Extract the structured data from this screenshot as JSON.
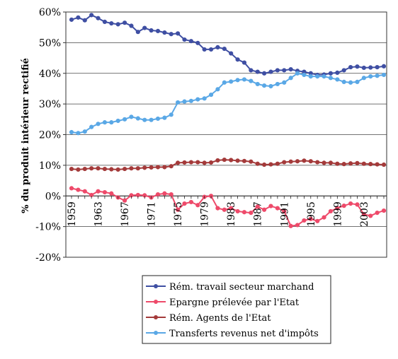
{
  "chart_data": {
    "type": "line",
    "title": "",
    "xlabel": "",
    "ylabel": "% du produit intérieur rectifié",
    "x": [
      1959,
      1960,
      1961,
      1962,
      1963,
      1964,
      1965,
      1966,
      1967,
      1968,
      1969,
      1970,
      1971,
      1972,
      1973,
      1974,
      1975,
      1976,
      1977,
      1978,
      1979,
      1980,
      1981,
      1982,
      1983,
      1984,
      1985,
      1986,
      1987,
      1988,
      1989,
      1990,
      1991,
      1992,
      1993,
      1994,
      1995,
      1996,
      1997,
      1998,
      1999,
      2000,
      2001,
      2002,
      2003,
      2004,
      2005,
      2006
    ],
    "x_tick_labels": [
      "1959",
      "1963",
      "1967",
      "1971",
      "1975",
      "1979",
      "1983",
      "1987",
      "1991",
      "1995",
      "1999",
      "2003"
    ],
    "x_ticks": [
      1959,
      1963,
      1967,
      1971,
      1975,
      1979,
      1983,
      1987,
      1991,
      1995,
      1999,
      2003
    ],
    "ylim": [
      -20,
      60
    ],
    "y_ticks": [
      -20,
      -10,
      0,
      10,
      20,
      30,
      40,
      50,
      60
    ],
    "y_tick_labels": [
      "-20%",
      "-10%",
      "0%",
      "10%",
      "20%",
      "30%",
      "40%",
      "50%",
      "60%"
    ],
    "grid": "horizontal",
    "legend_position": "bottom-right",
    "series": [
      {
        "name": "Rém. travail secteur marchand",
        "color": "#3f4fa3",
        "values": [
          57.5,
          58.2,
          57.3,
          59.0,
          58.0,
          56.8,
          56.3,
          56.0,
          56.5,
          55.5,
          53.5,
          54.8,
          54.0,
          53.8,
          53.3,
          52.8,
          53.0,
          51.0,
          50.5,
          49.9,
          47.8,
          47.8,
          48.5,
          48.0,
          46.5,
          44.5,
          43.5,
          41.0,
          40.5,
          40.0,
          40.5,
          41.0,
          41.0,
          41.3,
          40.8,
          40.5,
          40.0,
          39.5,
          39.6,
          40.0,
          40.2,
          41.0,
          42.0,
          42.2,
          41.8,
          41.9,
          42.0,
          42.3
        ]
      },
      {
        "name": "Epargne prélevée par l'Etat",
        "color": "#ee4a6a",
        "values": [
          2.5,
          2.0,
          1.5,
          0.3,
          1.5,
          1.2,
          0.8,
          -0.5,
          -1.5,
          0.2,
          0.3,
          0.2,
          -0.5,
          0.5,
          0.8,
          0.5,
          -4.5,
          -2.5,
          -2.0,
          -3.0,
          -0.3,
          0.0,
          -4.0,
          -4.5,
          -4.0,
          -5.0,
          -5.3,
          -5.5,
          -3.5,
          -4.5,
          -3.3,
          -4.0,
          -5.0,
          -9.8,
          -9.5,
          -8.0,
          -7.5,
          -8.2,
          -7.0,
          -5.0,
          -4.0,
          -3.2,
          -2.5,
          -2.8,
          -6.0,
          -6.5,
          -5.5,
          -4.8
        ]
      },
      {
        "name": "Rém. Agents de l'Etat",
        "color": "#a43a3a",
        "values": [
          8.8,
          8.6,
          8.8,
          9.0,
          9.0,
          8.8,
          8.7,
          8.6,
          8.8,
          9.0,
          9.0,
          9.2,
          9.3,
          9.4,
          9.4,
          9.7,
          10.8,
          10.9,
          11.0,
          11.0,
          10.8,
          10.9,
          11.6,
          11.8,
          11.7,
          11.5,
          11.4,
          11.2,
          10.5,
          10.2,
          10.3,
          10.5,
          11.0,
          11.2,
          11.3,
          11.5,
          11.3,
          11.0,
          10.8,
          10.8,
          10.5,
          10.4,
          10.6,
          10.7,
          10.5,
          10.4,
          10.3,
          10.2
        ]
      },
      {
        "name": "Transferts revenus net d'impôts",
        "color": "#5aa8e6",
        "values": [
          20.8,
          20.5,
          21.0,
          22.5,
          23.5,
          24.0,
          24.0,
          24.5,
          25.0,
          25.8,
          25.3,
          24.8,
          24.8,
          25.2,
          25.5,
          26.5,
          30.5,
          30.8,
          31.0,
          31.5,
          31.8,
          33.0,
          34.8,
          37.0,
          37.3,
          37.8,
          38.0,
          37.5,
          36.5,
          36.0,
          35.8,
          36.5,
          37.0,
          38.5,
          40.0,
          39.5,
          39.0,
          39.0,
          39.0,
          38.5,
          38.0,
          37.2,
          37.0,
          37.2,
          38.5,
          39.0,
          39.2,
          39.5
        ]
      }
    ]
  }
}
